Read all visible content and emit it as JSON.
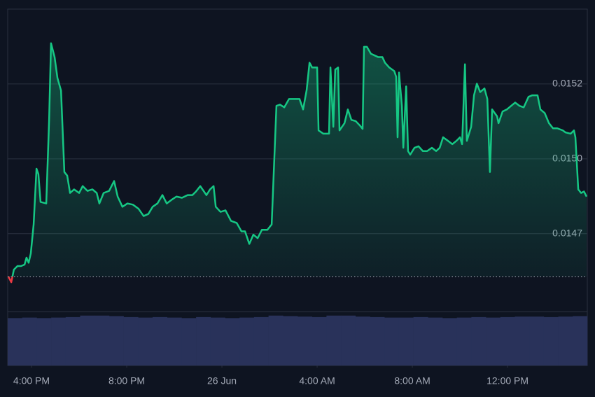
{
  "chart_data": {
    "type": "line",
    "x": [
      15.03,
      15.15,
      15.26,
      15.41,
      15.56,
      15.71,
      15.79,
      15.88,
      15.97,
      16.09,
      16.21,
      16.29,
      16.38,
      16.62,
      16.74,
      16.82,
      16.97,
      17.09,
      17.24,
      17.38,
      17.5,
      17.62,
      17.79,
      18.0,
      18.15,
      18.35,
      18.56,
      18.74,
      18.85,
      19.03,
      19.26,
      19.47,
      19.62,
      19.82,
      20.03,
      20.26,
      20.5,
      20.71,
      20.91,
      21.09,
      21.29,
      21.5,
      21.68,
      21.88,
      22.09,
      22.32,
      22.56,
      22.76,
      22.91,
      23.09,
      23.35,
      23.5,
      23.65,
      23.74,
      23.94,
      24.15,
      24.38,
      24.62,
      24.82,
      24.97,
      25.15,
      25.32,
      25.5,
      25.68,
      25.91,
      26.09,
      26.29,
      26.44,
      26.62,
      26.82,
      27.03,
      27.26,
      27.41,
      27.56,
      27.68,
      27.79,
      28.0,
      28.06,
      28.26,
      28.5,
      28.56,
      28.68,
      28.76,
      28.88,
      28.94,
      29.15,
      29.29,
      29.44,
      29.62,
      29.79,
      29.91,
      29.97,
      30.09,
      30.26,
      30.56,
      30.74,
      30.85,
      31.03,
      31.24,
      31.32,
      31.38,
      31.44,
      31.56,
      31.62,
      31.74,
      31.82,
      31.91,
      32.09,
      32.26,
      32.44,
      32.62,
      32.82,
      33.0,
      33.15,
      33.29,
      33.5,
      33.68,
      33.85,
      34.0,
      34.09,
      34.21,
      34.29,
      34.47,
      34.59,
      34.71,
      34.85,
      35.03,
      35.15,
      35.26,
      35.35,
      35.56,
      35.62,
      35.79,
      35.97,
      36.15,
      36.32,
      36.5,
      36.68,
      36.88,
      37.03,
      37.26,
      37.38,
      37.56,
      37.74,
      37.91,
      38.09,
      38.32,
      38.44,
      38.65,
      38.79,
      38.85,
      38.97,
      39.09,
      39.21,
      39.32
    ],
    "series": [
      {
        "color": "#16c784",
        "values": [
          0.014607,
          0.014588,
          0.01463,
          0.014642,
          0.014642,
          0.014647,
          0.01467,
          0.014653,
          0.014684,
          0.014781,
          0.014967,
          0.014949,
          0.014856,
          0.014851,
          0.01513,
          0.015386,
          0.01534,
          0.01527,
          0.015228,
          0.014956,
          0.014944,
          0.014886,
          0.014898,
          0.014886,
          0.014909,
          0.014893,
          0.014898,
          0.014886,
          0.014851,
          0.014886,
          0.014893,
          0.014926,
          0.014874,
          0.01484,
          0.014851,
          0.014847,
          0.014833,
          0.014809,
          0.014816,
          0.01484,
          0.014851,
          0.014879,
          0.014851,
          0.014863,
          0.014874,
          0.01487,
          0.014879,
          0.014879,
          0.014891,
          0.014909,
          0.014879,
          0.014898,
          0.014909,
          0.01484,
          0.014823,
          0.014828,
          0.014793,
          0.014786,
          0.014758,
          0.014758,
          0.014716,
          0.014747,
          0.014735,
          0.014763,
          0.014763,
          0.014781,
          0.015177,
          0.015181,
          0.015172,
          0.0152,
          0.0152,
          0.0152,
          0.015165,
          0.01523,
          0.015321,
          0.015305,
          0.015305,
          0.015095,
          0.015084,
          0.015084,
          0.015305,
          0.015107,
          0.015298,
          0.015305,
          0.015095,
          0.015119,
          0.015165,
          0.01513,
          0.015126,
          0.015112,
          0.0151,
          0.015374,
          0.015374,
          0.015351,
          0.01534,
          0.01534,
          0.015321,
          0.015305,
          0.015293,
          0.015274,
          0.015072,
          0.015288,
          0.015177,
          0.015037,
          0.015242,
          0.015026,
          0.015014,
          0.015037,
          0.015042,
          0.015026,
          0.015026,
          0.015037,
          0.015026,
          0.015037,
          0.015072,
          0.01506,
          0.015049,
          0.01506,
          0.015072,
          0.015049,
          0.015316,
          0.01506,
          0.015107,
          0.015212,
          0.015251,
          0.015223,
          0.015235,
          0.0152,
          0.014956,
          0.015165,
          0.015142,
          0.015119,
          0.015158,
          0.015165,
          0.015177,
          0.015188,
          0.015177,
          0.015172,
          0.015207,
          0.015212,
          0.015212,
          0.015165,
          0.015153,
          0.015119,
          0.015102,
          0.015102,
          0.015095,
          0.015088,
          0.015084,
          0.015095,
          0.015072,
          0.014898,
          0.014886,
          0.014891,
          0.014874
        ]
      }
    ],
    "xlim": [
      15.0,
      39.35
    ],
    "xticks": [
      {
        "value": 16,
        "label": "4:00 PM"
      },
      {
        "value": 20,
        "label": "8:00 PM"
      },
      {
        "value": 24,
        "label": "26 Jun"
      },
      {
        "value": 28,
        "label": "4:00 AM"
      },
      {
        "value": 32,
        "label": "8:00 AM"
      },
      {
        "value": 36,
        "label": "12:00 PM"
      }
    ],
    "ylim": [
      0.01449,
      0.0155
    ],
    "yticks": [
      {
        "value": 0.01475,
        "label": "0.0147"
      },
      {
        "value": 0.015,
        "label": "0.0150"
      },
      {
        "value": 0.01525,
        "label": "0.0152"
      }
    ],
    "grid": true,
    "reference_line": 0.014607,
    "below_color": "#ea3943",
    "volume": {
      "color": "#29325a",
      "ylim": [
        0,
        100
      ],
      "values": [
        94,
        95,
        94,
        95,
        96,
        99,
        99,
        98,
        96,
        95,
        96,
        95,
        94,
        96,
        95,
        94,
        95,
        96,
        99,
        98,
        97,
        96,
        99,
        99,
        97,
        96,
        95,
        95,
        96,
        95,
        94,
        95,
        96,
        95,
        96,
        97,
        97,
        96,
        97,
        98
      ]
    }
  }
}
